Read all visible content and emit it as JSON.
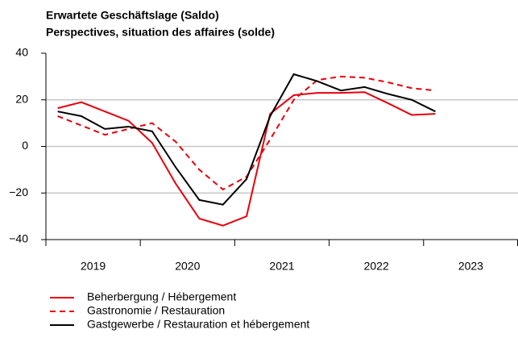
{
  "chart_data": {
    "type": "line",
    "title": [
      "Erwartete Geschäftslage (Saldo)",
      "Perspectives, situation des affaires (solde)"
    ],
    "x": [
      2019.125,
      2019.375,
      2019.625,
      2019.875,
      2020.125,
      2020.375,
      2020.625,
      2020.875,
      2021.125,
      2021.375,
      2021.625,
      2021.875,
      2022.125,
      2022.375,
      2022.625,
      2022.875,
      2023.125
    ],
    "xlim": [
      2019,
      2024
    ],
    "xticks": [
      2019,
      2020,
      2021,
      2022,
      2023,
      2024
    ],
    "year_labels": [
      "2019",
      "2020",
      "2021",
      "2022",
      "2023"
    ],
    "ylim": [
      -40,
      40
    ],
    "yticks": [
      {
        "value": -40,
        "label": "−40"
      },
      {
        "value": -20,
        "label": "−20"
      },
      0,
      20,
      40
    ],
    "grid": true,
    "series": [
      {
        "name": "Beherbergung / Hébergement",
        "color": "#e8000b",
        "dash": false,
        "values": [
          16.4,
          19,
          15,
          11,
          1.5,
          -16,
          -31,
          -34,
          -30,
          14,
          22,
          23,
          23,
          23.3,
          18.5,
          13.5,
          14
        ]
      },
      {
        "name": "Gastronomie / Restauration",
        "color": "#e8000b",
        "dash": true,
        "values": [
          13,
          9,
          5,
          7.5,
          10,
          2,
          -10,
          -18.5,
          -13,
          3,
          20,
          28.5,
          30,
          29.5,
          27.5,
          25,
          24
        ]
      },
      {
        "name": "Gastgewerbe / Restauration et hébergement",
        "color": "#000000",
        "dash": false,
        "values": [
          15,
          13,
          7.5,
          8.5,
          6.5,
          -9,
          -23,
          -25,
          -14,
          13,
          31,
          28,
          24,
          25.5,
          22.5,
          20,
          15
        ]
      }
    ]
  }
}
